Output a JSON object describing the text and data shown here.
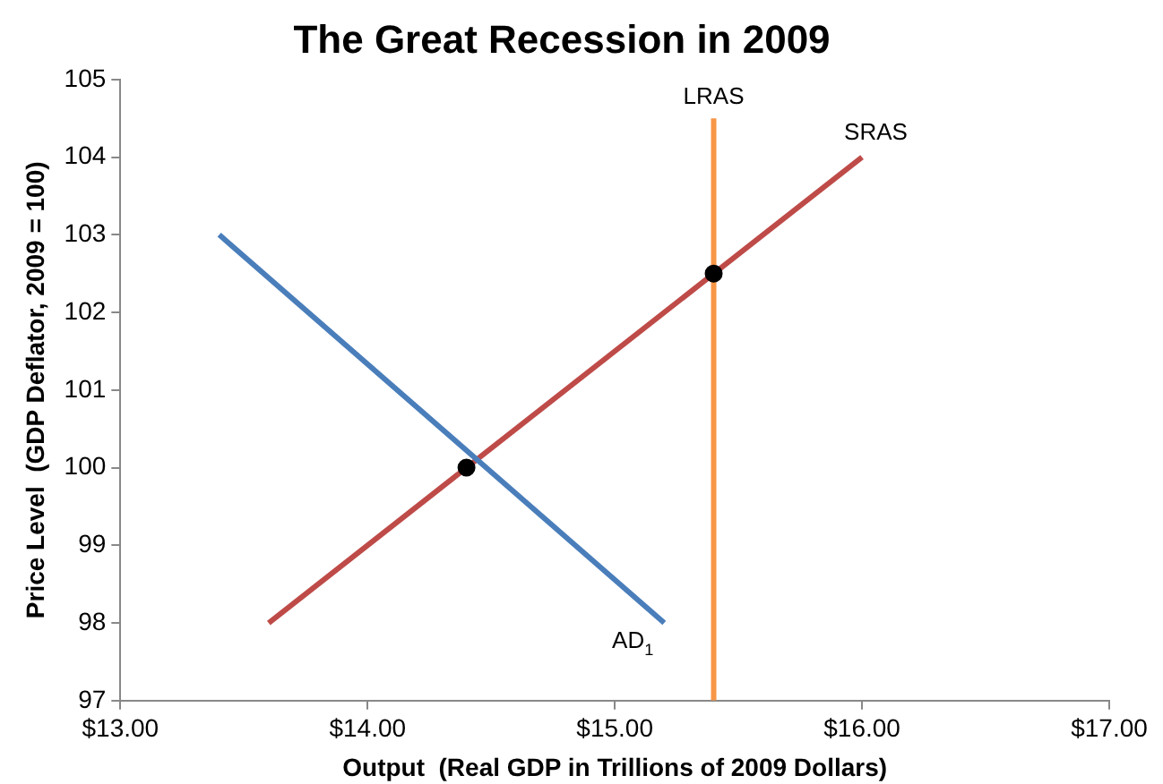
{
  "chart_data": {
    "type": "line",
    "title": "The Great Recession in 2009",
    "xlabel": "Output  (Real GDP in Trillions of 2009 Dollars)",
    "ylabel": "Price Level  (GDP Deflator, 2009 = 100)",
    "xlim": [
      13,
      17
    ],
    "xticks": [
      {
        "value": 13,
        "label": "$13.00"
      },
      {
        "value": 14,
        "label": "$14.00"
      },
      {
        "value": 15,
        "label": "$15.00"
      },
      {
        "value": 16,
        "label": "$16.00"
      },
      {
        "value": 17,
        "label": "$17.00"
      }
    ],
    "ylim": [
      97,
      105
    ],
    "yticks": [
      97,
      98,
      99,
      100,
      101,
      102,
      103,
      104,
      105
    ],
    "grid": false,
    "legend": false,
    "series": [
      {
        "name": "AD$_{1}$",
        "color": "#4a7ebb",
        "x": [
          13.4,
          15.2
        ],
        "values": [
          103,
          98
        ],
        "marker": "none"
      },
      {
        "name": "SRAS",
        "color": "#be4b48",
        "x": [
          13.6,
          16.0
        ],
        "values": [
          98,
          104
        ],
        "marker": "none"
      },
      {
        "name": "LRAS",
        "color": "#f79646",
        "x": [
          15.4,
          15.4
        ],
        "values": [
          97,
          104.5
        ],
        "marker": "none"
      },
      {
        "type": "scatter",
        "color": "#000000",
        "x": [
          14.4,
          15.4
        ],
        "values": [
          100,
          102.5
        ],
        "marker": "circle"
      }
    ]
  }
}
